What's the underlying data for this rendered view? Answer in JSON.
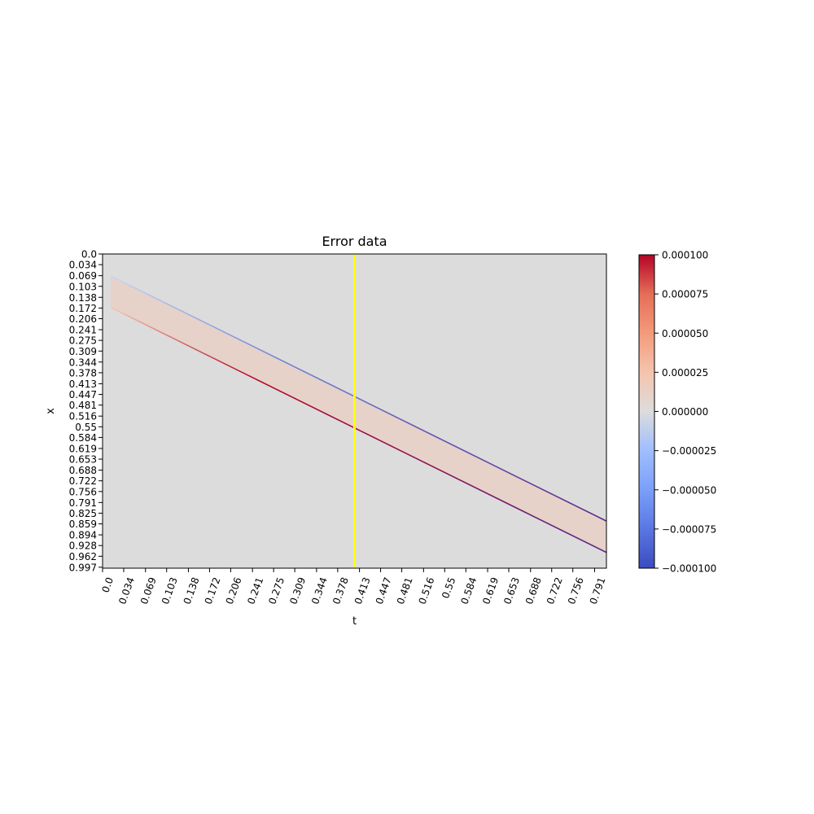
{
  "chart_data": {
    "type": "heatmap",
    "title": "Error data",
    "xlabel": "t",
    "ylabel": "x",
    "x_tick_labels": [
      "0.0",
      "0.034",
      "0.069",
      "0.103",
      "0.138",
      "0.172",
      "0.206",
      "0.241",
      "0.275",
      "0.309",
      "0.344",
      "0.378",
      "0.413",
      "0.447",
      "0.481",
      "0.516",
      "0.55",
      "0.584",
      "0.619",
      "0.653",
      "0.688",
      "0.722",
      "0.756",
      "0.791"
    ],
    "y_tick_labels": [
      "0.0",
      "0.034",
      "0.069",
      "0.103",
      "0.138",
      "0.172",
      "0.206",
      "0.241",
      "0.275",
      "0.309",
      "0.344",
      "0.378",
      "0.413",
      "0.447",
      "0.481",
      "0.516",
      "0.55",
      "0.584",
      "0.619",
      "0.653",
      "0.688",
      "0.722",
      "0.756",
      "0.791",
      "0.825",
      "0.859",
      "0.894",
      "0.928",
      "0.962",
      "0.997"
    ],
    "xlim": [
      0.0,
      0.81
    ],
    "ylim": [
      0.0,
      1.0
    ],
    "y_inverted": true,
    "colormap": "coolwarm",
    "colorbar": {
      "vmin": -0.0001,
      "vmax": 0.0001,
      "tick_labels": [
        "0.000100",
        "0.000075",
        "0.000050",
        "0.000025",
        "0.000000",
        "−0.000025",
        "−0.000050",
        "−0.000075",
        "−0.000100"
      ],
      "tick_values": [
        0.0001,
        7.5e-05,
        5e-05,
        2.5e-05,
        0,
        -2.5e-05,
        -5e-05,
        -7.5e-05,
        -0.0001
      ]
    },
    "background_value": 0.0,
    "features": [
      {
        "kind": "band",
        "t": [
          0.013,
          0.81
        ],
        "x_top": [
          0.07,
          0.85
        ],
        "x_bottom": [
          0.17,
          0.95
        ],
        "value": 1e-05
      },
      {
        "kind": "line",
        "t": [
          0.013,
          0.81
        ],
        "x": [
          0.07,
          0.85
        ],
        "value": -0.0001
      },
      {
        "kind": "line",
        "t": [
          0.013,
          0.81
        ],
        "x": [
          0.17,
          0.95
        ],
        "value": 0.0001
      }
    ],
    "marker_line": {
      "t": 0.405,
      "color": "#ffff00"
    }
  }
}
